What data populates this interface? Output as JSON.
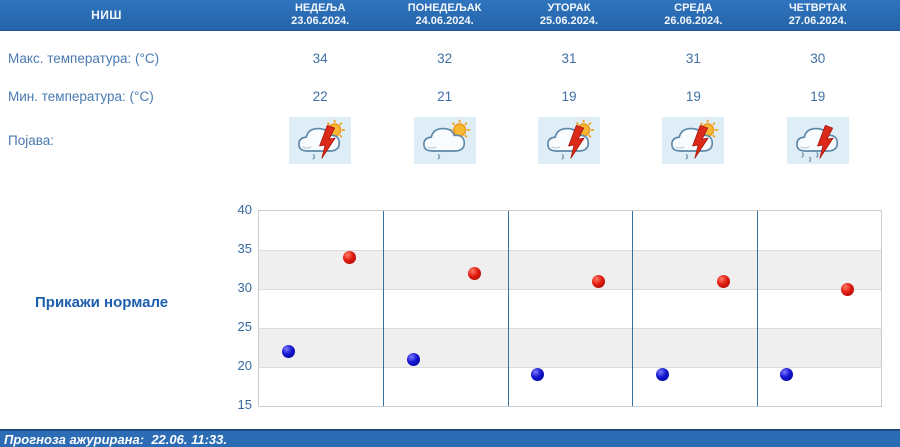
{
  "header": {
    "city": "НИШ"
  },
  "days": [
    {
      "name": "НЕДЕЉА",
      "date": "23.06.2024.",
      "max": "34",
      "min": "22",
      "icon": {
        "name": "sun-cloud-thunder-rain-icon",
        "sun": true,
        "lightning": true,
        "drops": 1
      }
    },
    {
      "name": "ПОНЕДЕЉАК",
      "date": "24.06.2024.",
      "max": "32",
      "min": "21",
      "icon": {
        "name": "sun-cloud-rain-icon",
        "sun": true,
        "lightning": false,
        "drops": 1
      }
    },
    {
      "name": "УТОРАК",
      "date": "25.06.2024.",
      "max": "31",
      "min": "19",
      "icon": {
        "name": "sun-cloud-thunder-rain-icon",
        "sun": true,
        "lightning": true,
        "drops": 1
      }
    },
    {
      "name": "СРЕДА",
      "date": "26.06.2024.",
      "max": "31",
      "min": "19",
      "icon": {
        "name": "sun-cloud-thunder-rain-icon",
        "sun": true,
        "lightning": true,
        "drops": 1
      }
    },
    {
      "name": "ЧЕТВРТАК",
      "date": "27.06.2024.",
      "max": "30",
      "min": "19",
      "icon": {
        "name": "cloud-thunder-rain-icon",
        "sun": false,
        "lightning": true,
        "drops": 3
      }
    }
  ],
  "rows": {
    "max_label": "Макс. температура: (°C)",
    "min_label": "Мин. температура: (°C)",
    "phenomenon_label": "Појава:"
  },
  "normals_button": "Прикажи нормале",
  "footer": {
    "updated": "Прогноза ажурирана:  22.06. 11:33."
  },
  "colors": {
    "header_bar": "#2b6cb4",
    "label_text": "#4a7ab2",
    "value_text": "#3f6fa6",
    "normals_text": "#1d5fae",
    "tick_text": "#33689e",
    "band_gray": "#efefef",
    "day_separator": "#36719f",
    "max_dot": "#cc1111",
    "min_dot": "#1414cf",
    "icon_box_bg": "#dfeef6",
    "footer_bar": "#2b6cb4"
  },
  "chart_data": {
    "type": "scatter",
    "categories": [
      "23.06.2024.",
      "24.06.2024.",
      "25.06.2024.",
      "26.06.2024.",
      "27.06.2024."
    ],
    "series": [
      {
        "name": "Макс. температура",
        "color": "#cc1111",
        "values": [
          34,
          32,
          31,
          31,
          30
        ],
        "x_frac": 0.73
      },
      {
        "name": "Мин. температура",
        "color": "#1414cf",
        "values": [
          22,
          21,
          19,
          19,
          19
        ],
        "x_frac": 0.24
      }
    ],
    "title": "",
    "xlabel": "",
    "ylabel": "",
    "ylim": [
      15,
      40
    ],
    "yticks": [
      15,
      20,
      25,
      30,
      35,
      40
    ],
    "shaded_bands": [
      [
        20,
        25
      ],
      [
        30,
        35
      ]
    ],
    "grid": true,
    "legend": false
  }
}
